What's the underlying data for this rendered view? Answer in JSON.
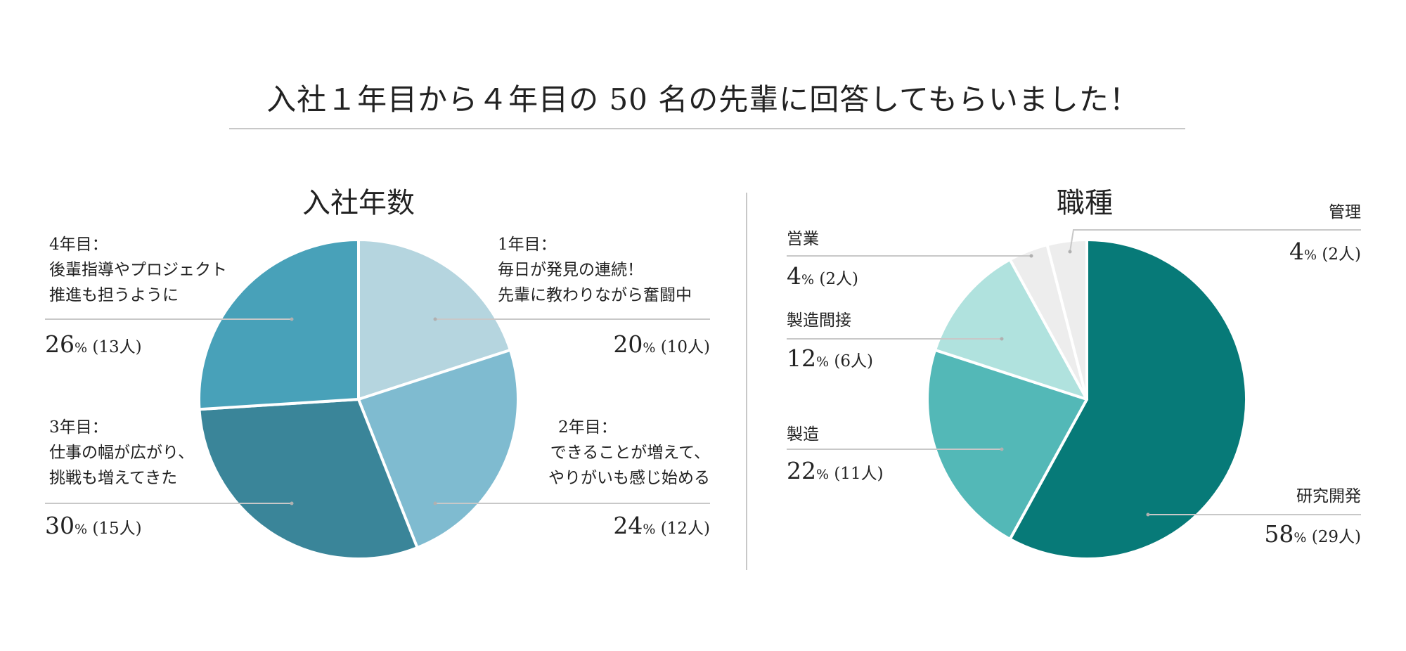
{
  "title": "入社１年目から４年目の 50 名の先輩に回答してもらいました！",
  "chart_data": [
    {
      "type": "pie",
      "title": "入社年数",
      "slices": [
        {
          "label": "1年目：",
          "desc": [
            "毎日が発見の連続！",
            "先輩に教わりながら奮闘中"
          ],
          "percent": 20,
          "count": "(10人)",
          "color": "#b5d5df"
        },
        {
          "label": "2年目：",
          "desc": [
            "できることが増えて、",
            "やりがいも感じ始める"
          ],
          "percent": 24,
          "count": "(12人)",
          "color": "#7fbbd0"
        },
        {
          "label": "3年目：",
          "desc": [
            "仕事の幅が広がり、",
            "挑戦も増えてきた"
          ],
          "percent": 30,
          "count": "(15人)",
          "color": "#3a8599"
        },
        {
          "label": "4年目：",
          "desc": [
            "後輩指導やプロジェクト",
            "推進も担うように"
          ],
          "percent": 26,
          "count": "(13人)",
          "color": "#48a1b9"
        }
      ]
    },
    {
      "type": "pie",
      "title": "職種",
      "slices": [
        {
          "label": "研究開発",
          "percent": 58,
          "count": "(29人)",
          "color": "#077a78"
        },
        {
          "label": "製造",
          "percent": 22,
          "count": "(11人)",
          "color": "#53b8b7"
        },
        {
          "label": "製造間接",
          "percent": 12,
          "count": "(6人)",
          "color": "#b0e2de"
        },
        {
          "label": "営業",
          "percent": 4,
          "count": "(2人)",
          "color": "#ededed"
        },
        {
          "label": "管理",
          "percent": 4,
          "count": "(2人)",
          "color": "#ededed"
        }
      ]
    }
  ],
  "percent_unit": "%"
}
